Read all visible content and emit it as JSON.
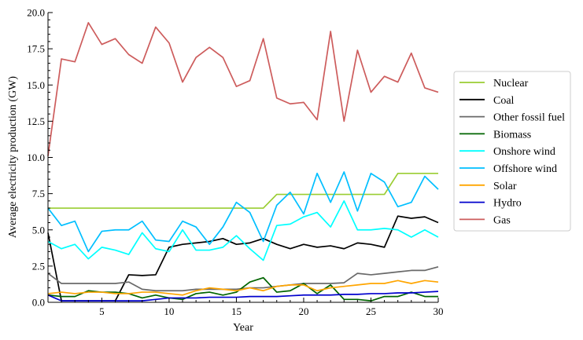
{
  "chart_data": {
    "type": "line",
    "title": "",
    "xlabel": "Year",
    "ylabel": "Average electricity production (GW)",
    "xlim": [
      1,
      30
    ],
    "ylim": [
      0,
      20
    ],
    "grid": false,
    "legend_position": "right",
    "x": [
      1,
      2,
      3,
      4,
      5,
      6,
      7,
      8,
      9,
      10,
      11,
      12,
      13,
      14,
      15,
      16,
      17,
      18,
      19,
      20,
      21,
      22,
      23,
      24,
      25,
      26,
      27,
      28,
      29,
      30
    ],
    "x_ticks": [
      5,
      10,
      15,
      20,
      25,
      30
    ],
    "y_ticks": [
      "0.0",
      "2.5",
      "5.0",
      "7.5",
      "10.0",
      "12.5",
      "15.0",
      "17.5",
      "20.0"
    ],
    "series": [
      {
        "name": "Nuclear",
        "color": "#9acd32",
        "values": [
          6.5,
          6.5,
          6.5,
          6.5,
          6.5,
          6.5,
          6.5,
          6.5,
          6.5,
          6.5,
          6.5,
          6.5,
          6.5,
          6.5,
          6.5,
          6.5,
          6.5,
          7.45,
          7.45,
          7.45,
          7.45,
          7.45,
          7.45,
          7.45,
          7.45,
          7.45,
          8.9,
          8.9,
          8.9,
          8.9
        ]
      },
      {
        "name": "Coal",
        "color": "#000000",
        "values": [
          4.8,
          0.1,
          0.1,
          0.1,
          0.1,
          0.1,
          1.9,
          1.85,
          1.9,
          3.8,
          4.0,
          4.1,
          4.2,
          4.4,
          4.0,
          4.1,
          4.4,
          4.0,
          3.7,
          4.0,
          3.8,
          3.9,
          3.7,
          4.1,
          4.0,
          3.8,
          5.95,
          5.8,
          5.9,
          5.5
        ]
      },
      {
        "name": "Other fossil fuel",
        "color": "#696969",
        "values": [
          2.0,
          1.3,
          1.3,
          1.3,
          1.3,
          1.3,
          1.4,
          0.9,
          0.8,
          0.8,
          0.8,
          0.9,
          0.9,
          0.9,
          0.9,
          1.0,
          1.0,
          1.1,
          1.2,
          1.3,
          1.3,
          1.3,
          1.35,
          2.0,
          1.9,
          2.0,
          2.1,
          2.2,
          2.2,
          2.45
        ]
      },
      {
        "name": "Biomass",
        "color": "#006400",
        "values": [
          0.5,
          0.4,
          0.4,
          0.8,
          0.7,
          0.7,
          0.6,
          0.3,
          0.5,
          0.3,
          0.2,
          0.6,
          0.7,
          0.5,
          0.7,
          1.4,
          1.7,
          0.7,
          0.8,
          1.3,
          0.6,
          1.2,
          0.2,
          0.2,
          0.1,
          0.4,
          0.4,
          0.7,
          0.4,
          0.4
        ]
      },
      {
        "name": "Onshore wind",
        "color": "#00ffff",
        "values": [
          4.2,
          3.7,
          4.0,
          3.0,
          3.8,
          3.6,
          3.3,
          4.8,
          3.7,
          3.5,
          5.0,
          3.6,
          3.6,
          3.8,
          4.6,
          3.7,
          2.9,
          5.3,
          5.4,
          5.9,
          6.2,
          5.2,
          7.0,
          5.0,
          5.0,
          5.1,
          5.0,
          4.5,
          5.0,
          4.5
        ]
      },
      {
        "name": "Offshore wind",
        "color": "#00bfff",
        "values": [
          6.5,
          5.3,
          5.6,
          3.5,
          4.9,
          5.0,
          5.0,
          5.6,
          4.3,
          4.2,
          5.6,
          5.2,
          4.0,
          5.2,
          6.9,
          6.2,
          4.2,
          6.7,
          7.6,
          6.1,
          8.9,
          6.9,
          9.0,
          6.3,
          8.9,
          8.3,
          6.6,
          6.9,
          8.7,
          7.8
        ]
      },
      {
        "name": "Solar",
        "color": "#ffa500",
        "values": [
          0.6,
          0.7,
          0.6,
          0.7,
          0.7,
          0.6,
          0.6,
          0.7,
          0.7,
          0.6,
          0.5,
          0.8,
          1.0,
          0.9,
          0.8,
          1.0,
          0.8,
          1.1,
          1.2,
          1.2,
          0.8,
          1.0,
          1.1,
          1.2,
          1.3,
          1.3,
          1.5,
          1.3,
          1.5,
          1.4
        ]
      },
      {
        "name": "Hydro",
        "color": "#0000cd",
        "values": [
          0.5,
          0.1,
          0.1,
          0.1,
          0.1,
          0.1,
          0.1,
          0.1,
          0.2,
          0.3,
          0.3,
          0.3,
          0.35,
          0.35,
          0.35,
          0.4,
          0.4,
          0.4,
          0.45,
          0.5,
          0.5,
          0.5,
          0.55,
          0.55,
          0.6,
          0.6,
          0.65,
          0.65,
          0.7,
          0.75
        ]
      },
      {
        "name": "Gas",
        "color": "#cd5c5c",
        "values": [
          10.1,
          16.8,
          16.6,
          19.3,
          17.8,
          18.2,
          17.1,
          16.5,
          19.0,
          17.9,
          15.2,
          16.9,
          17.6,
          16.9,
          14.9,
          15.3,
          18.2,
          14.1,
          13.7,
          13.8,
          12.6,
          18.7,
          12.5,
          17.4,
          14.5,
          15.6,
          15.2,
          17.2,
          14.8,
          14.5
        ]
      }
    ]
  }
}
